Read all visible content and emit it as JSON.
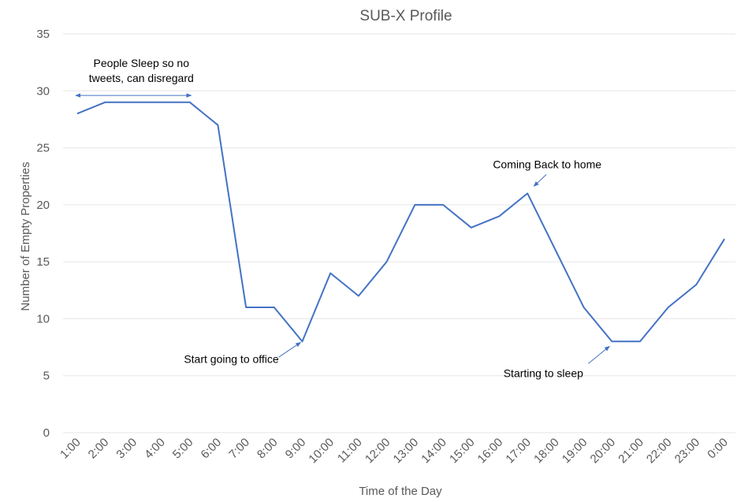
{
  "chart_data": {
    "type": "line",
    "title": "SUB-X Profile",
    "xlabel": "Time of the Day",
    "ylabel": "Number of Empty Properties",
    "categories": [
      "1:00",
      "2:00",
      "3:00",
      "4:00",
      "5:00",
      "6:00",
      "7:00",
      "8:00",
      "9:00",
      "10:00",
      "11:00",
      "12:00",
      "13:00",
      "14:00",
      "15:00",
      "16:00",
      "17:00",
      "18:00",
      "19:00",
      "20:00",
      "21:00",
      "22:00",
      "23:00",
      "0:00"
    ],
    "series": [
      {
        "values": [
          28,
          29,
          29,
          29,
          29,
          27,
          11,
          11,
          8,
          14,
          12,
          15,
          20,
          20,
          18,
          19,
          21,
          16,
          11,
          8,
          8,
          11,
          13,
          17
        ]
      }
    ],
    "ylim": [
      0,
      35
    ],
    "yticks": [
      0,
      5,
      10,
      15,
      20,
      25,
      30,
      35
    ],
    "grid": true,
    "legend": "none",
    "line_color": "#4472c4",
    "annotations": [
      {
        "lines": [
          "People Sleep so no",
          "tweets, can disregard"
        ],
        "arrow": "double-horizontal",
        "from_category": "1:00",
        "to_category": "5:00",
        "y": 29.6
      },
      {
        "lines": [
          "Start going to office"
        ],
        "arrow": "pointer",
        "target_category": "9:00",
        "target_value": 8
      },
      {
        "lines": [
          "Coming Back to home"
        ],
        "arrow": "pointer",
        "target_category": "17:00",
        "target_value": 21
      },
      {
        "lines": [
          "Starting to sleep"
        ],
        "arrow": "pointer",
        "target_category": "20:00",
        "target_value": 8
      }
    ]
  }
}
